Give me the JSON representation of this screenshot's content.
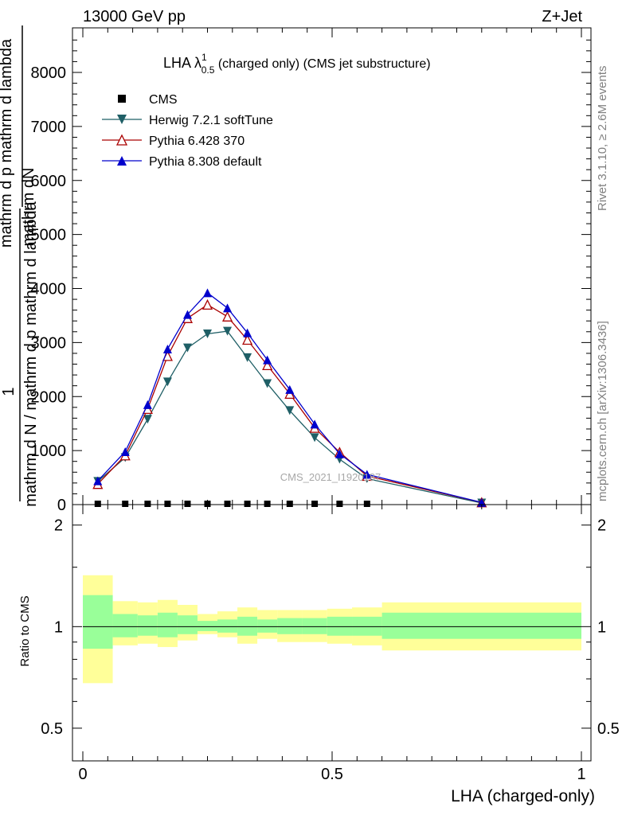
{
  "header": {
    "left": "13000 GeV pp",
    "right": "Z+Jet"
  },
  "title": {
    "main": "LHA λ",
    "sup": "1",
    "sub": "0.5",
    "rest": " (charged only) (CMS jet substructure)"
  },
  "side_labels": {
    "rivet": "Rivet 3.1.10, ≥ 2.6M events",
    "mcplots": "mcplots.cern.ch [arXiv:1306.3436]"
  },
  "watermark": "CMS_2021_I1920187",
  "ylabel_main": {
    "line1": "mathrm dN",
    "line2": "mathrm d p mathrm d lambda",
    "frac_num": "1",
    "frac_den": "mathrm d N / mathrm d p mathrm d lambda"
  },
  "ratio_ylabel": "Ratio to CMS",
  "xlabel": "LHA (charged-only)",
  "legend": [
    {
      "name": "CMS",
      "color": "#000000",
      "marker": "square"
    },
    {
      "name": "Herwig 7.2.1 softTune",
      "color": "#1f5f66",
      "marker": "tri-down"
    },
    {
      "name": "Pythia 6.428 370",
      "color": "#aa0000",
      "marker": "tri-up-open"
    },
    {
      "name": "Pythia 8.308 default",
      "color": "#0000cc",
      "marker": "tri-up"
    }
  ],
  "chart_data": {
    "type": "line",
    "xlim": [
      0,
      1
    ],
    "ylim": [
      0,
      8800
    ],
    "x_ticks": [
      0,
      0.5,
      1
    ],
    "x_tick_labels": [
      "0",
      "0.5",
      "1"
    ],
    "y_ticks": [
      0,
      1000,
      2000,
      3000,
      4000,
      5000,
      6000,
      7000,
      8000
    ],
    "y_tick_labels": [
      "0",
      "1000",
      "2000",
      "3000",
      "4000",
      "5000",
      "6000",
      "7000",
      "8000"
    ],
    "x": [
      0.03,
      0.085,
      0.13,
      0.17,
      0.21,
      0.25,
      0.29,
      0.33,
      0.37,
      0.415,
      0.465,
      0.515,
      0.57,
      0.8
    ],
    "series": [
      {
        "name": "CMS",
        "values": [
          0,
          0,
          0,
          0,
          0,
          0,
          0,
          0,
          0,
          0,
          0,
          0,
          0,
          null
        ]
      },
      {
        "name": "Herwig 7.2.1 softTune",
        "values": [
          430,
          870,
          1580,
          2270,
          2900,
          3160,
          3210,
          2720,
          2240,
          1740,
          1240,
          840,
          480,
          30
        ]
      },
      {
        "name": "Pythia 6.428 370",
        "values": [
          380,
          910,
          1770,
          2750,
          3450,
          3700,
          3480,
          3050,
          2580,
          2050,
          1420,
          970,
          530,
          40
        ]
      },
      {
        "name": "Pythia 8.308 default",
        "values": [
          440,
          980,
          1850,
          2880,
          3520,
          3920,
          3640,
          3180,
          2680,
          2130,
          1490,
          940,
          560,
          40
        ]
      }
    ],
    "ratio": {
      "ylim": [
        0.4,
        2.3
      ],
      "y_ticks": [
        0.5,
        1,
        2
      ],
      "y_tick_labels": [
        "0.5",
        "1",
        "2"
      ],
      "log_scale": true,
      "bins": [
        {
          "x0": 0.0,
          "x1": 0.06,
          "inner": [
            0.86,
            1.24
          ],
          "outer": [
            0.68,
            1.42
          ]
        },
        {
          "x0": 0.06,
          "x1": 0.11,
          "inner": [
            0.93,
            1.09
          ],
          "outer": [
            0.88,
            1.19
          ]
        },
        {
          "x0": 0.11,
          "x1": 0.15,
          "inner": [
            0.94,
            1.08
          ],
          "outer": [
            0.89,
            1.18
          ]
        },
        {
          "x0": 0.15,
          "x1": 0.19,
          "inner": [
            0.93,
            1.1
          ],
          "outer": [
            0.87,
            1.2
          ]
        },
        {
          "x0": 0.19,
          "x1": 0.23,
          "inner": [
            0.95,
            1.08
          ],
          "outer": [
            0.91,
            1.16
          ]
        },
        {
          "x0": 0.23,
          "x1": 0.27,
          "inner": [
            0.97,
            1.04
          ],
          "outer": [
            0.95,
            1.09
          ]
        },
        {
          "x0": 0.27,
          "x1": 0.31,
          "inner": [
            0.96,
            1.05
          ],
          "outer": [
            0.93,
            1.11
          ]
        },
        {
          "x0": 0.31,
          "x1": 0.35,
          "inner": [
            0.94,
            1.07
          ],
          "outer": [
            0.89,
            1.14
          ]
        },
        {
          "x0": 0.35,
          "x1": 0.39,
          "inner": [
            0.96,
            1.05
          ],
          "outer": [
            0.92,
            1.12
          ]
        },
        {
          "x0": 0.39,
          "x1": 0.44,
          "inner": [
            0.95,
            1.06
          ],
          "outer": [
            0.9,
            1.12
          ]
        },
        {
          "x0": 0.44,
          "x1": 0.49,
          "inner": [
            0.95,
            1.06
          ],
          "outer": [
            0.9,
            1.12
          ]
        },
        {
          "x0": 0.49,
          "x1": 0.54,
          "inner": [
            0.94,
            1.07
          ],
          "outer": [
            0.89,
            1.13
          ]
        },
        {
          "x0": 0.54,
          "x1": 0.6,
          "inner": [
            0.94,
            1.07
          ],
          "outer": [
            0.88,
            1.14
          ]
        },
        {
          "x0": 0.6,
          "x1": 1.0,
          "inner": [
            0.92,
            1.1
          ],
          "outer": [
            0.85,
            1.18
          ]
        }
      ],
      "inner_color": "#99ff99",
      "outer_color": "#ffff99",
      "reference_line": 1
    },
    "grid": false,
    "legend_position": "top-left"
  }
}
